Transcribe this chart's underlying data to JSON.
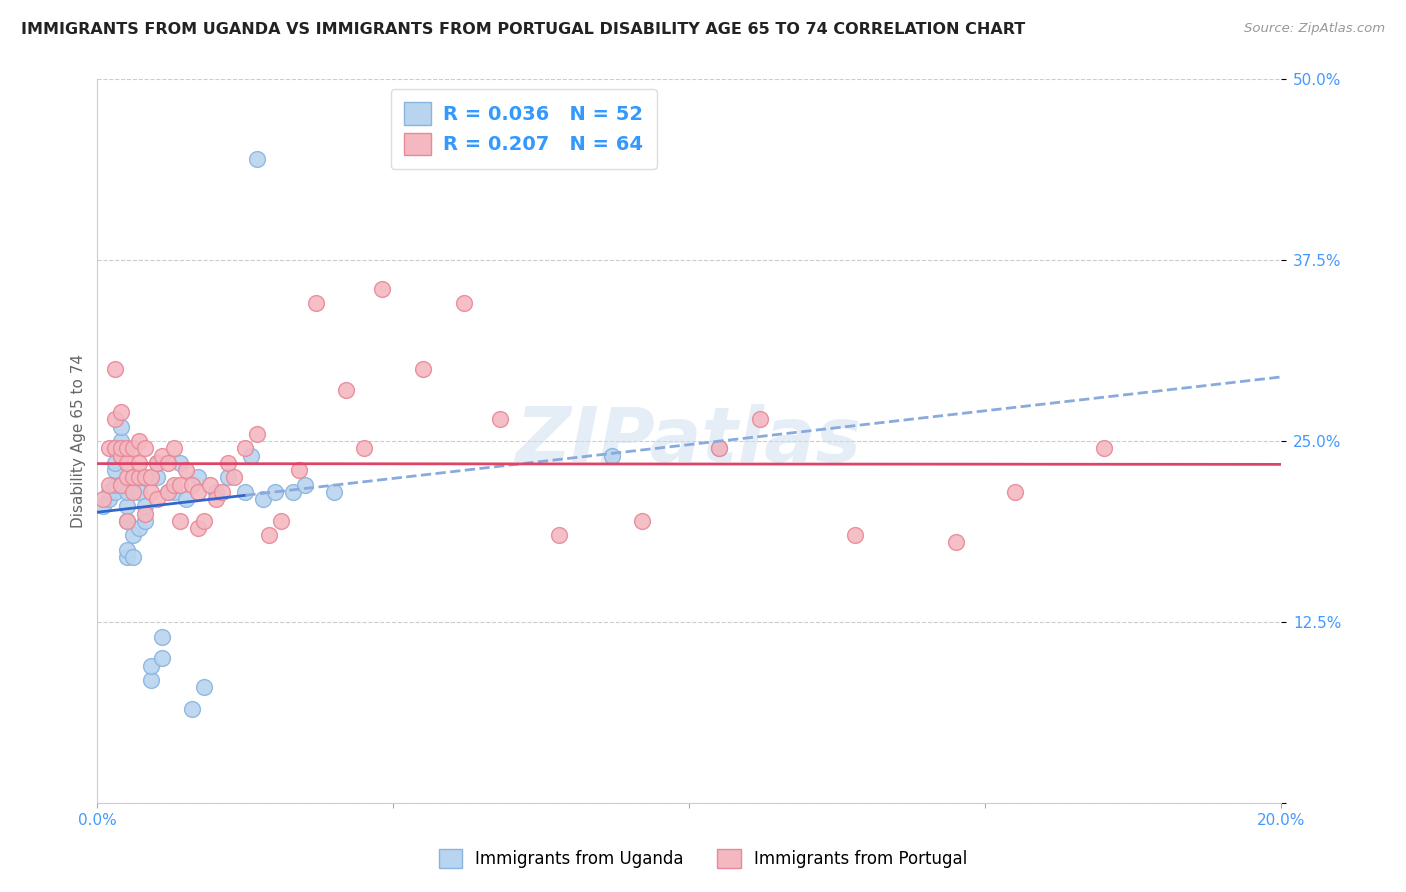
{
  "title": "IMMIGRANTS FROM UGANDA VS IMMIGRANTS FROM PORTUGAL DISABILITY AGE 65 TO 74 CORRELATION CHART",
  "source": "Source: ZipAtlas.com",
  "ylabel": "Disability Age 65 to 74",
  "xlim": [
    0.0,
    0.2
  ],
  "ylim": [
    0.0,
    0.5
  ],
  "xticks": [
    0.0,
    0.05,
    0.1,
    0.15,
    0.2
  ],
  "xticklabels": [
    "0.0%",
    "",
    "",
    "",
    "20.0%"
  ],
  "yticks": [
    0.0,
    0.125,
    0.25,
    0.375,
    0.5
  ],
  "yticklabels": [
    "",
    "12.5%",
    "25.0%",
    "37.5%",
    "50.0%"
  ],
  "background_color": "#ffffff",
  "grid_color": "#cccccc",
  "uganda_color": "#b8d4ef",
  "portugal_color": "#f4b8c1",
  "uganda_edge_color": "#88b4df",
  "portugal_edge_color": "#e88898",
  "uganda_R": 0.036,
  "uganda_N": 52,
  "portugal_R": 0.207,
  "portugal_N": 64,
  "watermark": "ZIPatlas",
  "trendline_uganda_solid_color": "#3366cc",
  "trendline_uganda_dashed_color": "#88aadd",
  "trendline_portugal_color": "#dd4466",
  "uganda_x": [
    0.001,
    0.002,
    0.002,
    0.003,
    0.003,
    0.003,
    0.003,
    0.003,
    0.003,
    0.004,
    0.004,
    0.004,
    0.004,
    0.004,
    0.005,
    0.005,
    0.005,
    0.005,
    0.005,
    0.006,
    0.006,
    0.006,
    0.007,
    0.007,
    0.007,
    0.008,
    0.008,
    0.009,
    0.009,
    0.01,
    0.01,
    0.011,
    0.011,
    0.012,
    0.013,
    0.014,
    0.015,
    0.016,
    0.017,
    0.018,
    0.02,
    0.022,
    0.025,
    0.026,
    0.027,
    0.028,
    0.03,
    0.033,
    0.035,
    0.04,
    0.087,
    0.105
  ],
  "uganda_y": [
    0.205,
    0.21,
    0.215,
    0.215,
    0.22,
    0.23,
    0.235,
    0.245,
    0.245,
    0.22,
    0.24,
    0.245,
    0.25,
    0.26,
    0.17,
    0.175,
    0.195,
    0.205,
    0.215,
    0.17,
    0.185,
    0.225,
    0.19,
    0.215,
    0.225,
    0.195,
    0.205,
    0.085,
    0.095,
    0.225,
    0.235,
    0.1,
    0.115,
    0.215,
    0.215,
    0.235,
    0.21,
    0.065,
    0.225,
    0.08,
    0.215,
    0.225,
    0.215,
    0.24,
    0.445,
    0.21,
    0.215,
    0.215,
    0.22,
    0.215,
    0.24,
    0.245
  ],
  "portugal_x": [
    0.001,
    0.002,
    0.002,
    0.003,
    0.003,
    0.003,
    0.004,
    0.004,
    0.004,
    0.004,
    0.005,
    0.005,
    0.005,
    0.005,
    0.006,
    0.006,
    0.006,
    0.007,
    0.007,
    0.007,
    0.008,
    0.008,
    0.008,
    0.009,
    0.009,
    0.01,
    0.01,
    0.011,
    0.012,
    0.012,
    0.013,
    0.013,
    0.014,
    0.014,
    0.015,
    0.016,
    0.017,
    0.017,
    0.018,
    0.019,
    0.02,
    0.021,
    0.022,
    0.023,
    0.025,
    0.027,
    0.029,
    0.031,
    0.034,
    0.037,
    0.042,
    0.045,
    0.048,
    0.055,
    0.062,
    0.068,
    0.078,
    0.092,
    0.105,
    0.112,
    0.128,
    0.145,
    0.155,
    0.17
  ],
  "portugal_y": [
    0.21,
    0.22,
    0.245,
    0.245,
    0.265,
    0.3,
    0.22,
    0.24,
    0.245,
    0.27,
    0.195,
    0.225,
    0.235,
    0.245,
    0.215,
    0.225,
    0.245,
    0.225,
    0.235,
    0.25,
    0.2,
    0.225,
    0.245,
    0.215,
    0.225,
    0.21,
    0.235,
    0.24,
    0.215,
    0.235,
    0.22,
    0.245,
    0.195,
    0.22,
    0.23,
    0.22,
    0.19,
    0.215,
    0.195,
    0.22,
    0.21,
    0.215,
    0.235,
    0.225,
    0.245,
    0.255,
    0.185,
    0.195,
    0.23,
    0.345,
    0.285,
    0.245,
    0.355,
    0.3,
    0.345,
    0.265,
    0.185,
    0.195,
    0.245,
    0.265,
    0.185,
    0.18,
    0.215,
    0.245
  ]
}
